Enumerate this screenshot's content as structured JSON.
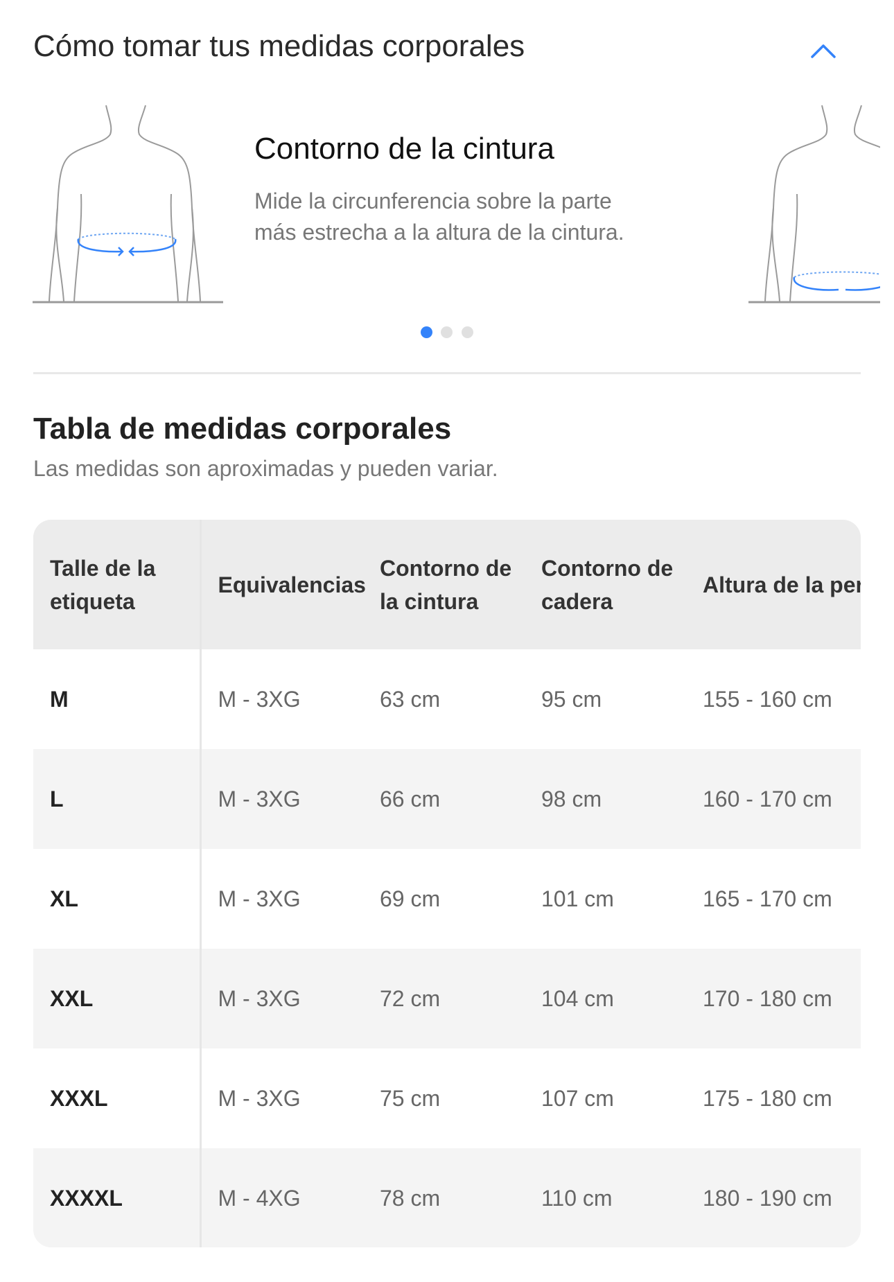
{
  "header": {
    "title": "Cómo tomar tus medidas corporales",
    "collapse_icon": "chevron-up-icon"
  },
  "carousel": {
    "slide_title": "Contorno de la cintura",
    "slide_description": "Mide la circunferencia sobre la parte más estrecha a la altura de la cintura.",
    "active_index": 0,
    "total": 3,
    "accent": "#3483fa"
  },
  "size_table": {
    "title": "Tabla de medidas corporales",
    "subtitle": "Las medidas son aproximadas y pueden variar.",
    "headers": [
      "Talle de la etiqueta",
      "Equivalencias",
      "Contorno de la cintura",
      "Contorno de cadera",
      "Altura de la persona"
    ],
    "rows": [
      [
        "M",
        "M - 3XG",
        "63 cm",
        "95 cm",
        "155 - 160 cm"
      ],
      [
        "L",
        "M - 3XG",
        "66 cm",
        "98 cm",
        "160 - 170 cm"
      ],
      [
        "XL",
        "M - 3XG",
        "69 cm",
        "101 cm",
        "165 - 170 cm"
      ],
      [
        "XXL",
        "M - 3XG",
        "72 cm",
        "104 cm",
        "170 - 180 cm"
      ],
      [
        "XXXL",
        "M - 3XG",
        "75 cm",
        "107 cm",
        "175 - 180 cm"
      ],
      [
        "XXXXL",
        "M - 4XG",
        "78 cm",
        "110 cm",
        "180 - 190 cm"
      ]
    ]
  }
}
